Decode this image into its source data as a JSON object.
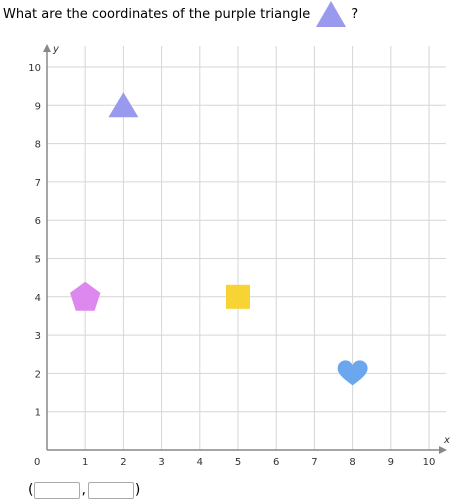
{
  "question": {
    "text": "What are the coordinates of the purple triangle",
    "icon": "purple-triangle-icon",
    "end": "?"
  },
  "grid": {
    "x_label": "x",
    "y_label": "y",
    "origin_label": "0",
    "xlim": [
      0,
      10
    ],
    "ylim": [
      0,
      10
    ],
    "x_ticks": [
      "1",
      "2",
      "3",
      "4",
      "5",
      "6",
      "7",
      "8",
      "9",
      "10"
    ],
    "y_ticks": [
      "1",
      "2",
      "3",
      "4",
      "5",
      "6",
      "7",
      "8",
      "9",
      "10"
    ],
    "grid_on": true
  },
  "shapes": [
    {
      "name": "triangle",
      "x": 2,
      "y": 9,
      "color": "#9999ee"
    },
    {
      "name": "pentagon",
      "x": 1,
      "y": 4,
      "color": "#dd88ee"
    },
    {
      "name": "square",
      "x": 5,
      "y": 4,
      "color": "#f7d433"
    },
    {
      "name": "heart",
      "x": 8,
      "y": 2,
      "color": "#6aa7ee"
    }
  ],
  "answer": {
    "open_paren": "(",
    "comma": ",",
    "close_paren": ")",
    "x_value": "",
    "y_value": ""
  }
}
